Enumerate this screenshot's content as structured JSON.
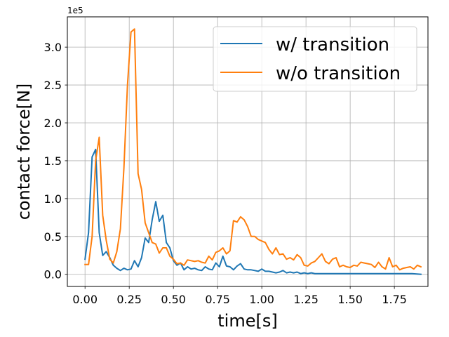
{
  "chart_data": {
    "type": "line",
    "xlabel": "time[s]",
    "ylabel": "contact force[N]",
    "y_offset_label": "1e5",
    "xlim": [
      -0.1,
      1.94
    ],
    "ylim": [
      -0.16,
      3.4
    ],
    "x_ticks": [
      0.0,
      0.25,
      0.5,
      0.75,
      1.0,
      1.25,
      1.5,
      1.75
    ],
    "x_tick_labels": [
      "0.00",
      "0.25",
      "0.50",
      "0.75",
      "1.00",
      "1.25",
      "1.50",
      "1.75"
    ],
    "y_ticks": [
      0.0,
      0.5,
      1.0,
      1.5,
      2.0,
      2.5,
      3.0
    ],
    "y_tick_labels": [
      "0.0",
      "0.5",
      "1.0",
      "1.5",
      "2.0",
      "2.5",
      "3.0"
    ],
    "grid": true,
    "legend_position": "top-right",
    "series": [
      {
        "name": "w/ transition",
        "color": "#1f77b4",
        "x": [
          0.0,
          0.02,
          0.04,
          0.06,
          0.08,
          0.1,
          0.12,
          0.14,
          0.16,
          0.18,
          0.2,
          0.22,
          0.24,
          0.26,
          0.28,
          0.3,
          0.32,
          0.34,
          0.36,
          0.38,
          0.4,
          0.42,
          0.44,
          0.46,
          0.48,
          0.5,
          0.52,
          0.54,
          0.56,
          0.58,
          0.6,
          0.62,
          0.64,
          0.66,
          0.68,
          0.7,
          0.72,
          0.74,
          0.76,
          0.78,
          0.8,
          0.82,
          0.84,
          0.86,
          0.88,
          0.9,
          0.92,
          0.94,
          0.96,
          0.98,
          1.0,
          1.02,
          1.04,
          1.06,
          1.08,
          1.1,
          1.12,
          1.14,
          1.16,
          1.18,
          1.2,
          1.22,
          1.24,
          1.26,
          1.28,
          1.3,
          1.35,
          1.4,
          1.45,
          1.5,
          1.55,
          1.6,
          1.65,
          1.7,
          1.75,
          1.8,
          1.85,
          1.9
        ],
        "y": [
          0.2,
          0.55,
          1.55,
          1.65,
          0.55,
          0.25,
          0.3,
          0.22,
          0.12,
          0.08,
          0.05,
          0.08,
          0.06,
          0.07,
          0.18,
          0.1,
          0.22,
          0.48,
          0.42,
          0.72,
          0.96,
          0.7,
          0.78,
          0.42,
          0.35,
          0.18,
          0.12,
          0.15,
          0.06,
          0.1,
          0.07,
          0.08,
          0.06,
          0.05,
          0.1,
          0.07,
          0.06,
          0.15,
          0.1,
          0.24,
          0.11,
          0.1,
          0.06,
          0.11,
          0.14,
          0.07,
          0.06,
          0.06,
          0.05,
          0.04,
          0.07,
          0.04,
          0.04,
          0.03,
          0.02,
          0.03,
          0.05,
          0.02,
          0.03,
          0.02,
          0.03,
          0.01,
          0.02,
          0.01,
          0.02,
          0.01,
          0.01,
          0.01,
          0.01,
          0.01,
          0.01,
          0.01,
          0.01,
          0.01,
          0.01,
          0.01,
          0.01,
          0.0
        ]
      },
      {
        "name": "w/o transition",
        "color": "#ff7f0e",
        "x": [
          0.0,
          0.02,
          0.04,
          0.06,
          0.08,
          0.1,
          0.12,
          0.14,
          0.16,
          0.18,
          0.2,
          0.22,
          0.24,
          0.26,
          0.28,
          0.3,
          0.32,
          0.34,
          0.36,
          0.38,
          0.4,
          0.42,
          0.44,
          0.46,
          0.48,
          0.5,
          0.52,
          0.54,
          0.56,
          0.58,
          0.6,
          0.62,
          0.64,
          0.66,
          0.68,
          0.7,
          0.72,
          0.74,
          0.76,
          0.78,
          0.8,
          0.82,
          0.84,
          0.86,
          0.88,
          0.9,
          0.92,
          0.94,
          0.96,
          0.98,
          1.0,
          1.02,
          1.04,
          1.06,
          1.08,
          1.1,
          1.12,
          1.14,
          1.16,
          1.18,
          1.2,
          1.22,
          1.24,
          1.26,
          1.28,
          1.3,
          1.32,
          1.34,
          1.36,
          1.38,
          1.4,
          1.42,
          1.44,
          1.46,
          1.48,
          1.5,
          1.52,
          1.54,
          1.56,
          1.58,
          1.6,
          1.62,
          1.64,
          1.66,
          1.68,
          1.7,
          1.72,
          1.74,
          1.76,
          1.78,
          1.8,
          1.82,
          1.84,
          1.86,
          1.88,
          1.9
        ],
        "y": [
          0.13,
          0.13,
          0.5,
          1.5,
          1.81,
          0.78,
          0.45,
          0.2,
          0.15,
          0.3,
          0.6,
          1.4,
          2.5,
          3.2,
          3.24,
          1.33,
          1.12,
          0.68,
          0.55,
          0.42,
          0.4,
          0.28,
          0.35,
          0.35,
          0.24,
          0.2,
          0.14,
          0.15,
          0.12,
          0.19,
          0.18,
          0.17,
          0.18,
          0.16,
          0.15,
          0.24,
          0.19,
          0.29,
          0.31,
          0.35,
          0.27,
          0.31,
          0.71,
          0.69,
          0.76,
          0.72,
          0.63,
          0.5,
          0.5,
          0.46,
          0.44,
          0.42,
          0.33,
          0.27,
          0.35,
          0.26,
          0.27,
          0.2,
          0.22,
          0.19,
          0.26,
          0.22,
          0.12,
          0.11,
          0.15,
          0.17,
          0.22,
          0.27,
          0.17,
          0.14,
          0.2,
          0.22,
          0.1,
          0.12,
          0.1,
          0.09,
          0.12,
          0.11,
          0.16,
          0.15,
          0.14,
          0.13,
          0.09,
          0.16,
          0.1,
          0.07,
          0.22,
          0.1,
          0.12,
          0.06,
          0.08,
          0.09,
          0.1,
          0.07,
          0.12,
          0.1
        ]
      }
    ]
  }
}
